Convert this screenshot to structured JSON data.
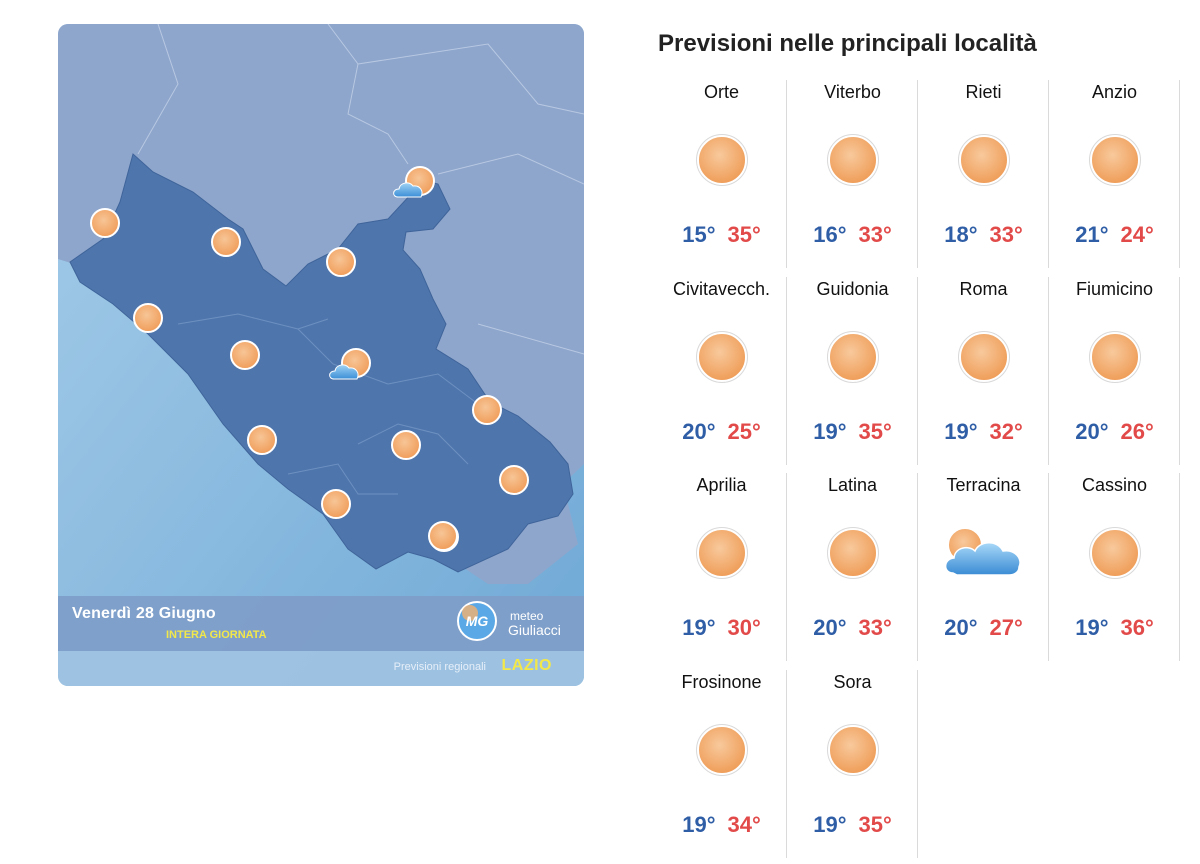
{
  "map": {
    "date": "Venerdì 28 Giugno",
    "period": "INTERA GIORNATA",
    "brand_line1": "meteo",
    "brand_line2": "Giuliacci",
    "brand_logo_text": "MG",
    "region_label": "Previsioni regionali",
    "region_name": "LAZIO",
    "colors": {
      "sea": "#7db6dc",
      "land": "#8ea6cc",
      "region": "#4e76ad",
      "footer": "#6f94c2"
    },
    "markers": [
      {
        "icon": "sun-icon"
      },
      {
        "icon": "sun-icon"
      },
      {
        "icon": "sun-icon"
      },
      {
        "icon": "sun-cloud-icon"
      },
      {
        "icon": "sun-icon"
      },
      {
        "icon": "sun-icon"
      },
      {
        "icon": "sun-cloud-icon"
      },
      {
        "icon": "sun-icon"
      },
      {
        "icon": "sun-icon"
      },
      {
        "icon": "sun-icon"
      },
      {
        "icon": "sun-icon"
      },
      {
        "icon": "sun-icon"
      },
      {
        "icon": "sun-icon"
      },
      {
        "icon": "sun-icon"
      }
    ]
  },
  "panel": {
    "title": "Previsioni nelle principali località",
    "locations": [
      {
        "name": "Orte",
        "min": "15°",
        "max": "35°",
        "icon": "sun-icon"
      },
      {
        "name": "Viterbo",
        "min": "16°",
        "max": "33°",
        "icon": "sun-icon"
      },
      {
        "name": "Rieti",
        "min": "18°",
        "max": "33°",
        "icon": "sun-icon"
      },
      {
        "name": "Anzio",
        "min": "21°",
        "max": "24°",
        "icon": "sun-icon"
      },
      {
        "name": "Civitavecch.",
        "min": "20°",
        "max": "25°",
        "icon": "sun-icon"
      },
      {
        "name": "Guidonia",
        "min": "19°",
        "max": "35°",
        "icon": "sun-icon"
      },
      {
        "name": "Roma",
        "min": "19°",
        "max": "32°",
        "icon": "sun-icon"
      },
      {
        "name": "Fiumicino",
        "min": "20°",
        "max": "26°",
        "icon": "sun-icon"
      },
      {
        "name": "Aprilia",
        "min": "19°",
        "max": "30°",
        "icon": "sun-icon"
      },
      {
        "name": "Latina",
        "min": "20°",
        "max": "33°",
        "icon": "sun-icon"
      },
      {
        "name": "Terracina",
        "min": "20°",
        "max": "27°",
        "icon": "sun-cloud-icon"
      },
      {
        "name": "Cassino",
        "min": "19°",
        "max": "36°",
        "icon": "sun-icon"
      },
      {
        "name": "Frosinone",
        "min": "19°",
        "max": "34°",
        "icon": "sun-icon"
      },
      {
        "name": "Sora",
        "min": "19°",
        "max": "35°",
        "icon": "sun-icon"
      }
    ]
  }
}
